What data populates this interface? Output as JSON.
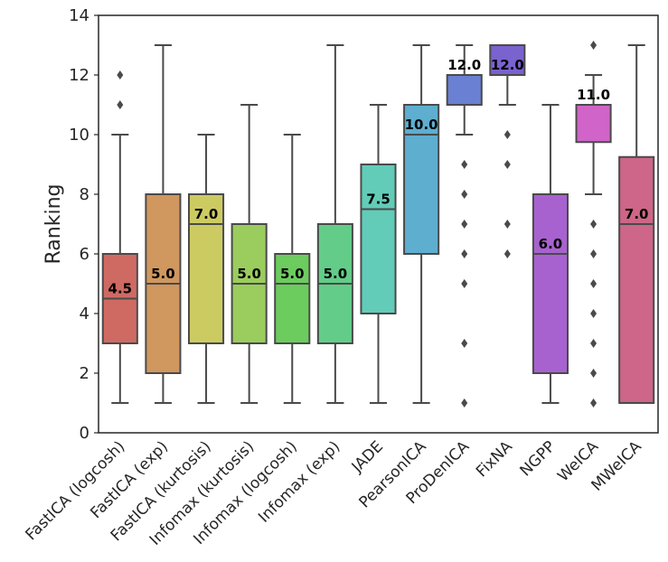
{
  "chart_data": {
    "type": "box",
    "title": "",
    "xlabel": "",
    "ylabel": "Ranking",
    "ylim": [
      0,
      14
    ],
    "yticks": [
      "0",
      "2",
      "4",
      "6",
      "8",
      "10",
      "12",
      "14"
    ],
    "grid": false,
    "legend": "none",
    "categories": [
      "FastICA (logcosh)",
      "FastICA (exp)",
      "FastICA (kurtosis)",
      "Infomax (kurtosis)",
      "Infomax (logcosh)",
      "Infomax (exp)",
      "JADE",
      "PearsonICA",
      "ProDenICA",
      "FixNA",
      "NGPP",
      "WeICA",
      "MWeICA"
    ],
    "boxes": [
      {
        "name": "FastICA (logcosh)",
        "color": "#cf6a63",
        "q1": 3,
        "median": 4.5,
        "q3": 6,
        "whisker_low": 1,
        "whisker_high": 10,
        "outliers": [
          11,
          12
        ],
        "median_label": "4.5"
      },
      {
        "name": "FastICA (exp)",
        "color": "#d0975e",
        "q1": 2,
        "median": 5,
        "q3": 8,
        "whisker_low": 1,
        "whisker_high": 13,
        "outliers": [],
        "median_label": "5.0"
      },
      {
        "name": "FastICA (kurtosis)",
        "color": "#cccb62",
        "q1": 3,
        "median": 7,
        "q3": 8,
        "whisker_low": 1,
        "whisker_high": 10,
        "outliers": [],
        "median_label": "7.0"
      },
      {
        "name": "Infomax (kurtosis)",
        "color": "#9bcc5e",
        "q1": 3,
        "median": 5,
        "q3": 7,
        "whisker_low": 1,
        "whisker_high": 11,
        "outliers": [],
        "median_label": "5.0"
      },
      {
        "name": "Infomax (logcosh)",
        "color": "#6ccc5e",
        "q1": 3,
        "median": 5,
        "q3": 6,
        "whisker_low": 1,
        "whisker_high": 10,
        "outliers": [],
        "median_label": "5.0"
      },
      {
        "name": "Infomax (exp)",
        "color": "#63cc88",
        "q1": 3,
        "median": 5,
        "q3": 7,
        "whisker_low": 1,
        "whisker_high": 13,
        "outliers": [],
        "median_label": "5.0"
      },
      {
        "name": "JADE",
        "color": "#62ccb8",
        "q1": 4,
        "median": 7.5,
        "q3": 9,
        "whisker_low": 1,
        "whisker_high": 11,
        "outliers": [],
        "median_label": "7.5"
      },
      {
        "name": "PearsonICA",
        "color": "#5eaed0",
        "q1": 6,
        "median": 10,
        "q3": 11,
        "whisker_low": 1,
        "whisker_high": 13,
        "outliers": [],
        "median_label": "10.0"
      },
      {
        "name": "ProDenICA",
        "color": "#6a80d2",
        "q1": 11,
        "median": 12,
        "q3": 12,
        "whisker_low": 10,
        "whisker_high": 13,
        "outliers": [
          9,
          8,
          7,
          6,
          5,
          3,
          1
        ],
        "median_label": "12.0"
      },
      {
        "name": "FixNA",
        "color": "#7a62cf",
        "q1": 12,
        "median": 12,
        "q3": 13,
        "whisker_low": 11,
        "whisker_high": 13,
        "outliers": [
          10,
          9,
          7,
          6
        ],
        "median_label": "12.0"
      },
      {
        "name": "NGPP",
        "color": "#a862d0",
        "q1": 2,
        "median": 6,
        "q3": 8,
        "whisker_low": 1,
        "whisker_high": 11,
        "outliers": [],
        "median_label": "6.0"
      },
      {
        "name": "WeICA",
        "color": "#d064c8",
        "q1": 9.75,
        "median": 11,
        "q3": 11,
        "whisker_low": 8,
        "whisker_high": 12,
        "outliers": [
          13,
          7,
          6,
          5,
          4,
          3,
          2,
          1
        ],
        "median_label": "11.0"
      },
      {
        "name": "MWeICA",
        "color": "#cd6688",
        "q1": 1,
        "median": 7,
        "q3": 9.25,
        "whisker_low": 1,
        "whisker_high": 13,
        "outliers": [],
        "median_label": "7.0"
      }
    ]
  }
}
